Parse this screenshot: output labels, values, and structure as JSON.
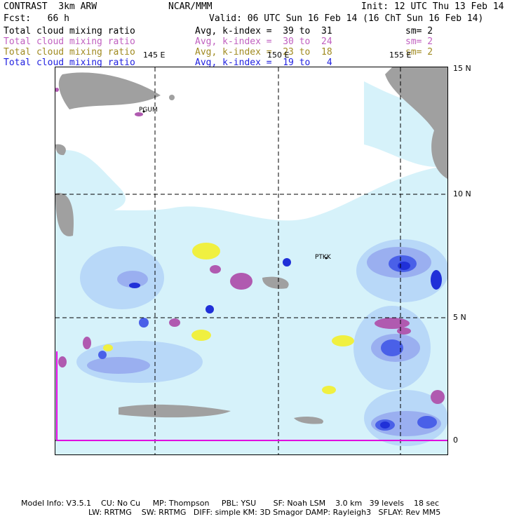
{
  "header": {
    "model": "CONTRAST  3km ARW",
    "org": "NCAR/MMM",
    "init": "Init: 12 UTC Thu 13 Feb 14",
    "fcst": "Fcst:   66 h",
    "valid": "Valid: 06 UTC Sun 16 Feb 14 (16 ChT Sun 16 Feb 14)"
  },
  "fields": [
    {
      "name": "Total cloud mixing ratio",
      "stat": "Avg, k-index =  39 to  31",
      "sm": "sm= 2",
      "color": "#000000"
    },
    {
      "name": "Total cloud mixing ratio",
      "stat": "Avg, k-index =  30 to  24",
      "sm": "sm= 2",
      "color": "#c060c0"
    },
    {
      "name": "Total cloud mixing ratio",
      "stat": "Avg, k-index =  23 to  18",
      "sm": "sm= 2",
      "color": "#a08a20"
    },
    {
      "name": "Total cloud mixing ratio",
      "stat": "Avg, k-index =  19 to   4",
      "sm": "sm= 2",
      "color": "#2020e0"
    }
  ],
  "map": {
    "lon_labels": [
      "145 E",
      "150 E",
      "155 E"
    ],
    "lat_labels": [
      "15 N",
      "10 N",
      "5 N",
      "0"
    ],
    "stations": [
      "PGUM",
      "PTKK"
    ],
    "colors": {
      "land": "#a0a0a0",
      "cloud_light": "#d6f2fa",
      "cloud_mid": "#b8d8f8",
      "cloud_blue1": "#9aaff0",
      "cloud_blue2": "#4a60e8",
      "cloud_blue3": "#2030d8",
      "purple": "#b05ab0",
      "yellow": "#f0f040",
      "grid": "#000000",
      "magenta_line": "#e000e0"
    }
  },
  "footer": {
    "line1": "Model Info: V3.5.1    CU: No Cu     MP: Thompson     PBL: YSU       SF: Noah LSM    3.0 km   39 levels    18 sec",
    "line2": "LW: RRTMG    SW: RRTMG   DIFF: simple KM: 3D Smagor DAMP: Rayleigh3   SFLAY: Rev MM5"
  }
}
